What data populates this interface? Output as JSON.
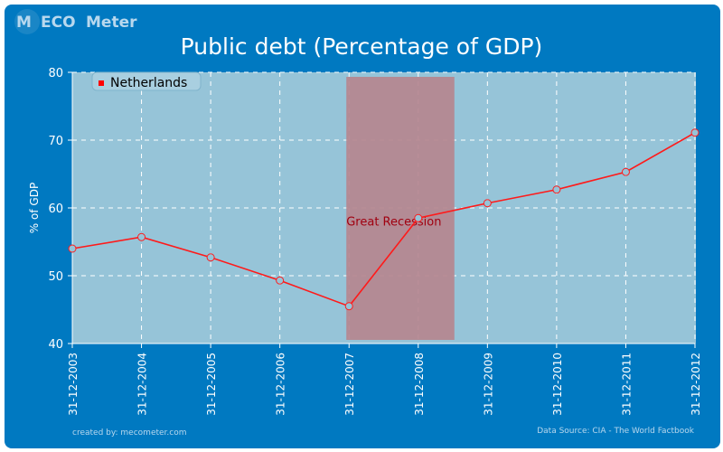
{
  "brand": {
    "logo_text": "MacroECOnomy Meter",
    "logo_parts": [
      "M",
      "ECO",
      "Meter"
    ]
  },
  "footer": {
    "credit": "created by: mecometer.com",
    "source": "Data Source: CIA - The World Factbook"
  },
  "colors": {
    "background": "#0079c1",
    "plot": "#96c4d8",
    "line": "#ff1a1a",
    "recession": "#b5868f",
    "recession_text": "#a00010"
  },
  "chart_data": {
    "type": "line",
    "title": "Public debt (Percentage of GDP)",
    "xlabel": "",
    "ylabel": "% of GDP",
    "ylim": [
      40,
      80
    ],
    "yticks": [
      40,
      50,
      60,
      70,
      80
    ],
    "grid": true,
    "legend_position": "top-left",
    "categories": [
      "31-12-2003",
      "31-12-2004",
      "31-12-2005",
      "31-12-2006",
      "31-12-2007",
      "31-12-2008",
      "31-12-2009",
      "31-12-2010",
      "31-12-2011",
      "31-12-2012"
    ],
    "series": [
      {
        "name": "Netherlands",
        "values": [
          54.0,
          55.7,
          52.7,
          49.3,
          45.5,
          58.5,
          60.7,
          62.7,
          65.3,
          71.1
        ]
      }
    ],
    "annotations": [
      {
        "label": "Great Recession",
        "x_start": "31-12-2007",
        "x_end": "31-12-2008"
      }
    ]
  }
}
